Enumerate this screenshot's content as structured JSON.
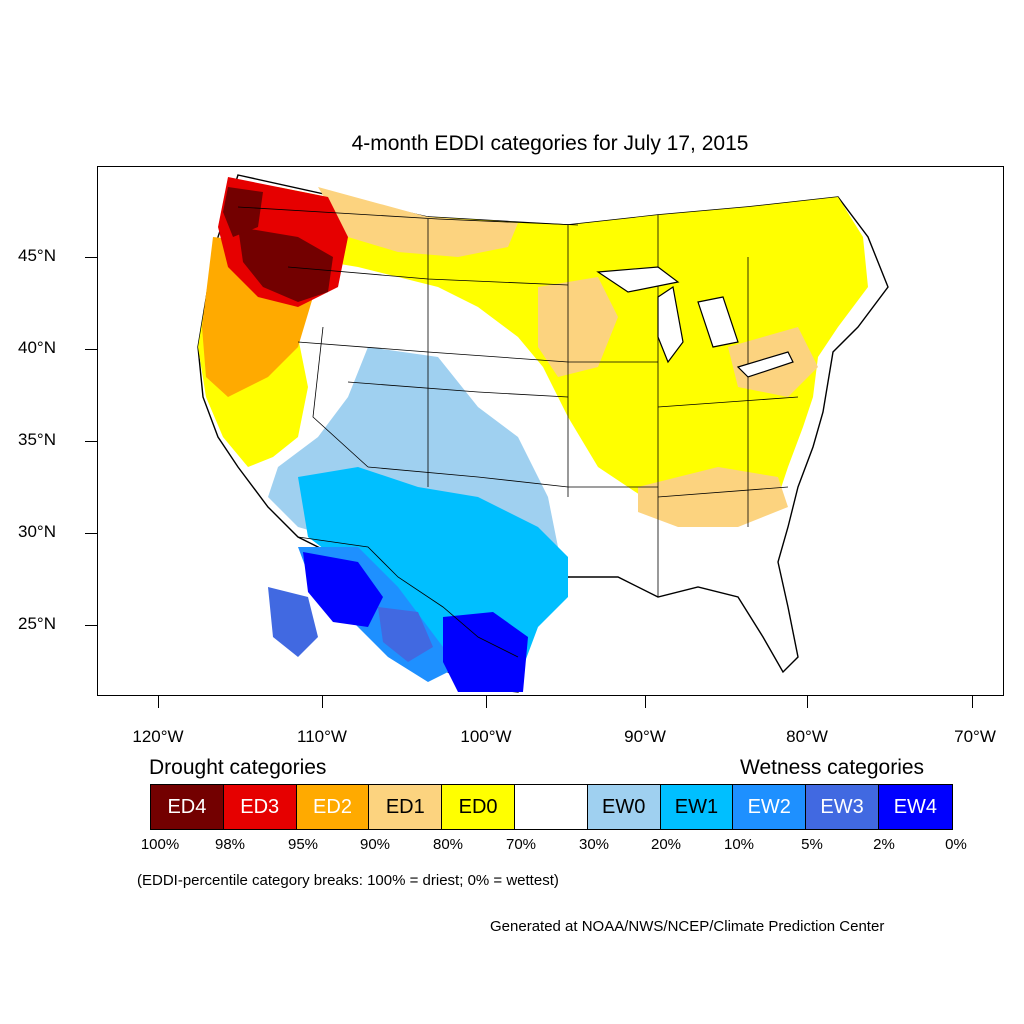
{
  "title": "4-month EDDI categories for July 17, 2015",
  "lat_labels": [
    "45°N",
    "40°N",
    "35°N",
    "30°N",
    "25°N"
  ],
  "lon_labels": [
    "120°W",
    "110°W",
    "100°W",
    "90°W",
    "80°W",
    "70°W"
  ],
  "legend": {
    "drought_heading": "Drought categories",
    "wetness_heading": "Wetness categories",
    "categories": [
      {
        "label": "ED4",
        "color": "#730000",
        "text_color": "#ffffff"
      },
      {
        "label": "ED3",
        "color": "#e60000",
        "text_color": "#ffffff"
      },
      {
        "label": "ED2",
        "color": "#ffaa00",
        "text_color": "#ffffff"
      },
      {
        "label": "ED1",
        "color": "#fcd37f",
        "text_color": "#000000"
      },
      {
        "label": "ED0",
        "color": "#ffff00",
        "text_color": "#000000"
      },
      {
        "label": "",
        "color": "#ffffff",
        "text_color": "#000000"
      },
      {
        "label": "EW0",
        "color": "#9fd0f0",
        "text_color": "#000000"
      },
      {
        "label": "EW1",
        "color": "#00bfff",
        "text_color": "#000000"
      },
      {
        "label": "EW2",
        "color": "#1e90ff",
        "text_color": "#ffffff"
      },
      {
        "label": "EW3",
        "color": "#4169e1",
        "text_color": "#ffffff"
      },
      {
        "label": "EW4",
        "color": "#0000ff",
        "text_color": "#ffffff"
      }
    ],
    "breaks": [
      "100%",
      "98%",
      "95%",
      "90%",
      "80%",
      "70%",
      "30%",
      "20%",
      "10%",
      "5%",
      "2%",
      "0%"
    ]
  },
  "breaks_note": "(EDDI-percentile category breaks: 100% = driest; 0% = wettest)",
  "credit": "Generated at NOAA/NWS/NCEP/Climate Prediction Center"
}
